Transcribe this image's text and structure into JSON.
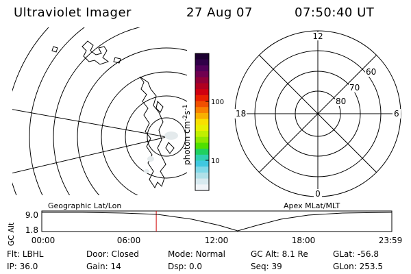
{
  "header": {
    "instrument": "Ultraviolet Imager",
    "date": "27 Aug 07",
    "time": "07:50:40 UT"
  },
  "colorbar": {
    "label": "photon cm-2s-1",
    "label_parts": {
      "base": "photon cm",
      "sup1": "-2",
      "mid": "s",
      "sup2": "-1"
    },
    "tick_labels": [
      "100",
      "10"
    ],
    "colors_top_to_bottom": [
      "#1c0030",
      "#300048",
      "#500058",
      "#700050",
      "#900038",
      "#b00020",
      "#d00010",
      "#e82000",
      "#f05000",
      "#f88000",
      "#f8b000",
      "#f8e000",
      "#e8f000",
      "#c0f000",
      "#90e800",
      "#50e000",
      "#20d060",
      "#30d0b0",
      "#40c8e0",
      "#80d8e8",
      "#b0e0e8",
      "#d8eaf0",
      "#f0f4f8"
    ]
  },
  "polar_plot": {
    "mlt_labels": {
      "top": "12",
      "left": "18",
      "right": "6",
      "bottom": "0"
    },
    "lat_labels": [
      "60",
      "70",
      "80"
    ]
  },
  "timeline": {
    "ylabel": "GC Alt",
    "y_ticks": [
      "9.0",
      "1.8"
    ],
    "left_caption": "Geographic Lat/Lon",
    "right_caption": "Apex MLat/MLT",
    "x_ticks": [
      "00:00",
      "06:00",
      "12:00",
      "18:00",
      "23:59"
    ],
    "current_time_fraction": 0.327
  },
  "status": {
    "row1": [
      {
        "key": "Flt:",
        "value": "LBHL"
      },
      {
        "key": "Door:",
        "value": "Closed"
      },
      {
        "key": "Mode:",
        "value": "Normal"
      },
      {
        "key": "GC Alt:",
        "value": "8.1 Re"
      },
      {
        "key": "GLat:",
        "value": "-56.8"
      }
    ],
    "row2": [
      {
        "key": "IP:",
        "value": "36.0"
      },
      {
        "key": "Gain:",
        "value": "14"
      },
      {
        "key": "Dsp:",
        "value": "0.0"
      },
      {
        "key": "Seq:",
        "value": "39"
      },
      {
        "key": "GLon:",
        "value": "253.5"
      }
    ]
  }
}
